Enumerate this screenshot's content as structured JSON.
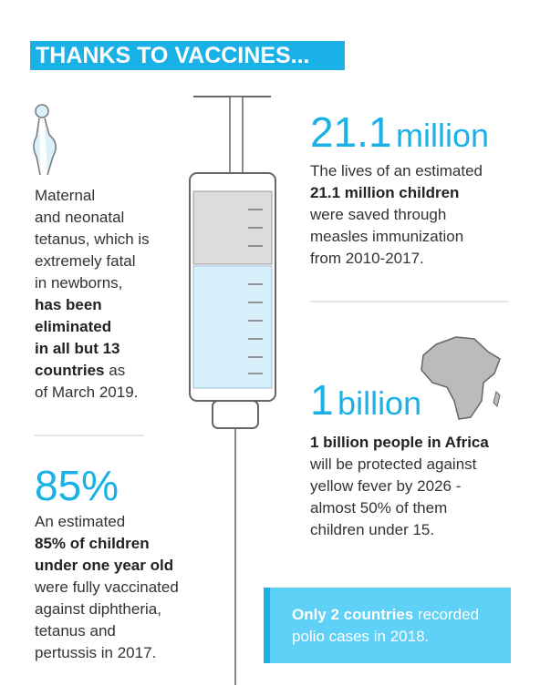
{
  "header": {
    "title": "THANKS TO VACCINES..."
  },
  "maternal": {
    "lines": [
      [
        "Maternal"
      ],
      [
        "and neonatal"
      ],
      [
        "tetanus, which is"
      ],
      [
        "extremely fatal"
      ],
      [
        "in newborns,"
      ],
      [
        "has been"
      ],
      [
        "eliminated"
      ],
      [
        "in all but 13"
      ],
      [
        "countries",
        " as"
      ],
      [
        "of March 2019."
      ]
    ]
  },
  "measles": {
    "stat": "21.1",
    "unit": "million",
    "lines": [
      [
        "The lives of an estimated"
      ],
      [
        "21.1 million children"
      ],
      [
        "were saved through"
      ],
      [
        "measles immunization"
      ],
      [
        "from 2010-2017."
      ]
    ]
  },
  "africa": {
    "stat": "1",
    "unit": "billion",
    "lines": [
      [
        "1 billion people in Africa"
      ],
      [
        "will be protected against"
      ],
      [
        "yellow fever by 2026 -"
      ],
      [
        "almost 50% of them"
      ],
      [
        "children under 15."
      ]
    ]
  },
  "children": {
    "stat": "85%",
    "lines": [
      [
        "An estimated"
      ],
      [
        "85% of children"
      ],
      [
        "under one year old"
      ],
      [
        "were fully vaccinated"
      ],
      [
        "against diphtheria,"
      ],
      [
        "tetanus and"
      ],
      [
        "pertussis in 2017."
      ]
    ]
  },
  "polio": {
    "lines": [
      [
        "Only 2 countries",
        " recorded"
      ],
      [
        "polio cases in 2018."
      ]
    ]
  }
}
